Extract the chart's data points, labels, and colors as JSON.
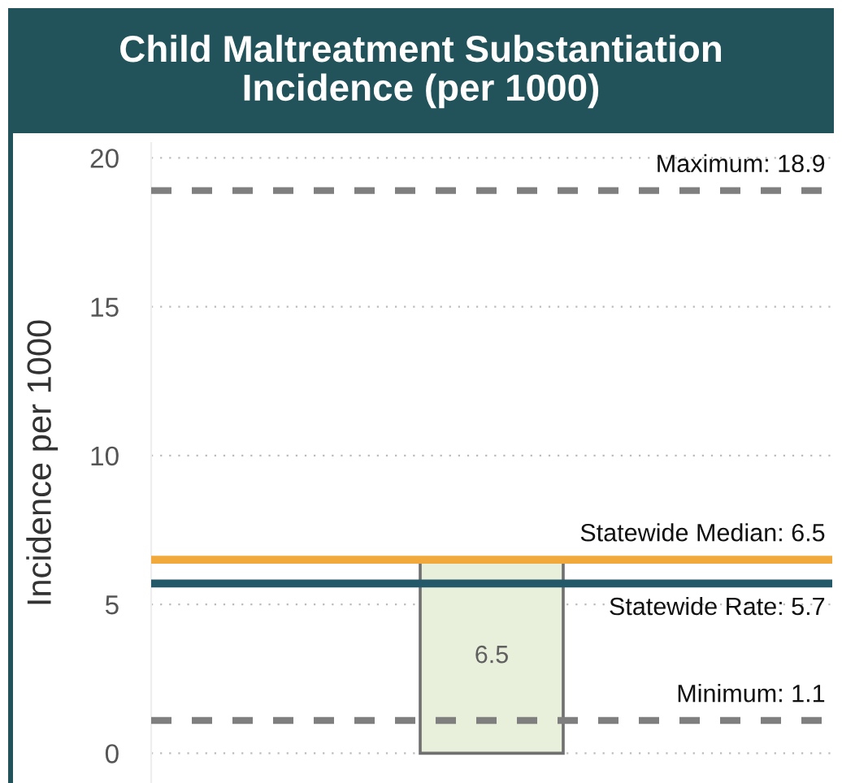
{
  "chart_data": {
    "type": "bar",
    "title": "Child Maltreatment Substantiation\nIncidence (per 1000)",
    "ylabel": "Incidence per 1000",
    "categories": [
      null
    ],
    "values": [
      6.5
    ],
    "color": "#e8efda",
    "data_labels": true,
    "ylim": [
      -1,
      20.5
    ],
    "yticks": [
      0,
      5,
      10,
      15,
      20
    ],
    "grid": "y",
    "ref_lines": [
      {
        "axis": "y",
        "value": 18.9,
        "label": "Maximum: 18.9",
        "color": "#7f7f7f",
        "line_style": "dashed"
      },
      {
        "axis": "y",
        "value": 6.5,
        "label": "Statewide Median: 6.5",
        "color": "#f2a93b",
        "line_style": "solid"
      },
      {
        "axis": "y",
        "value": 5.7,
        "label": "Statewide Rate: 5.7",
        "color": "#24596a",
        "line_style": "solid"
      },
      {
        "axis": "y",
        "value": 1.1,
        "label": "Minimum: 1.1",
        "color": "#7f7f7f",
        "line_style": "dashed"
      }
    ]
  }
}
